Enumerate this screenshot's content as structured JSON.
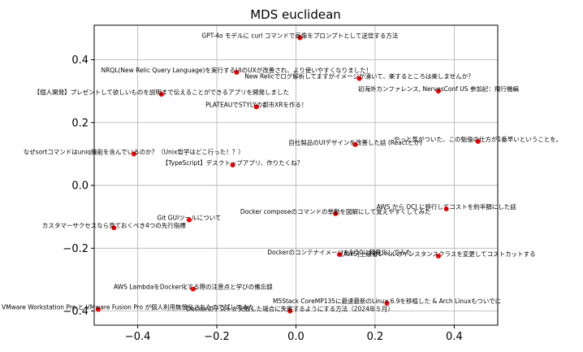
{
  "chart_data": {
    "type": "scatter",
    "title": "MDS euclidean",
    "xlabel": "",
    "ylabel": "",
    "xlim": [
      -0.51,
      0.51
    ],
    "ylim": [
      -0.445,
      0.51
    ],
    "grid": true,
    "x_ticks": [
      -0.4,
      -0.2,
      0.0,
      0.2,
      0.4
    ],
    "y_ticks": [
      -0.4,
      -0.2,
      0.0,
      0.2,
      0.4
    ],
    "x_tick_labels": [
      "−0.4",
      "−0.2",
      "0.0",
      "0.2",
      "0.4"
    ],
    "y_tick_labels": [
      "−0.4",
      "−0.2",
      "0.0",
      "0.2",
      "0.4"
    ],
    "marker_color": "#ff0000",
    "points": [
      {
        "x": 0.01,
        "y": 0.47,
        "label": "GPT-4o モデルに curl コマンドで画像をプロンプトとして送信する方法"
      },
      {
        "x": -0.15,
        "y": 0.36,
        "label": "NRQL(New Relic Query Language)を実行するUIのUXが改善され、より使いやすくなりました！"
      },
      {
        "x": 0.16,
        "y": 0.34,
        "label": "New Relicでログ解析してますがイメージが湧いて、楽するところは楽しませんか？"
      },
      {
        "x": 0.36,
        "y": 0.3,
        "label": "初海外カンファレンス, NervesConf US 参加記：飛行機編"
      },
      {
        "x": -0.34,
        "y": 0.29,
        "label": "【個人開発】プレゼントして欲しいものを説明まで伝えることができるアプリを開発しました"
      },
      {
        "x": -0.1,
        "y": 0.25,
        "label": "PLATEAUでSTYLYの都市XRを作る！"
      },
      {
        "x": 0.15,
        "y": 0.13,
        "label": "自社製品のUIデザインを改善した話 (Reactとか)"
      },
      {
        "x": 0.46,
        "y": 0.14,
        "label": "やっと気がついた、この勉強の仕方が1番早いということを。"
      },
      {
        "x": -0.41,
        "y": 0.1,
        "label": "なぜsortコマンドはuniq機能を含んでいるのか？（Unix哲学はどこ行った！？）"
      },
      {
        "x": -0.16,
        "y": 0.065,
        "label": "【TypeScript】デスクトップアプリ、作りたくね？"
      },
      {
        "x": 0.38,
        "y": -0.075,
        "label": "AWS から OCI に移行してコストを約半額にした話"
      },
      {
        "x": 0.1,
        "y": -0.09,
        "label": "Docker composeのコマンドの挙動を図解にして覚えやすくしてみた"
      },
      {
        "x": -0.27,
        "y": -0.11,
        "label": "Git GUIツールについて"
      },
      {
        "x": -0.46,
        "y": -0.135,
        "label": "カスタマーサクセスなら見ておくべき4つの先行指標"
      },
      {
        "x": 0.11,
        "y": -0.22,
        "label": "Dockerのコンテナイメージを1/10に軽量化してみた"
      },
      {
        "x": 0.36,
        "y": -0.225,
        "label": "[AWS]上級者レベルのインスタンスクラスを変更してコストカットする"
      },
      {
        "x": -0.26,
        "y": -0.33,
        "label": "AWS LambdaをDocker化する際の注意点と学びの備忘録"
      },
      {
        "x": 0.23,
        "y": -0.375,
        "label": "M5Stack CoreMP135に最速最新のLinux 6.9を移植した & Arch Linuxもついでに"
      },
      {
        "x": -0.5,
        "y": -0.395,
        "label": "VMware Workstation Pro と VMware Fusion Pro が個人利用無償化されたので試してみた"
      },
      {
        "x": -0.015,
        "y": -0.4,
        "label": "Dockerのテストが失敗した場合に失敗するようにする方法（2024年５月）"
      }
    ]
  }
}
